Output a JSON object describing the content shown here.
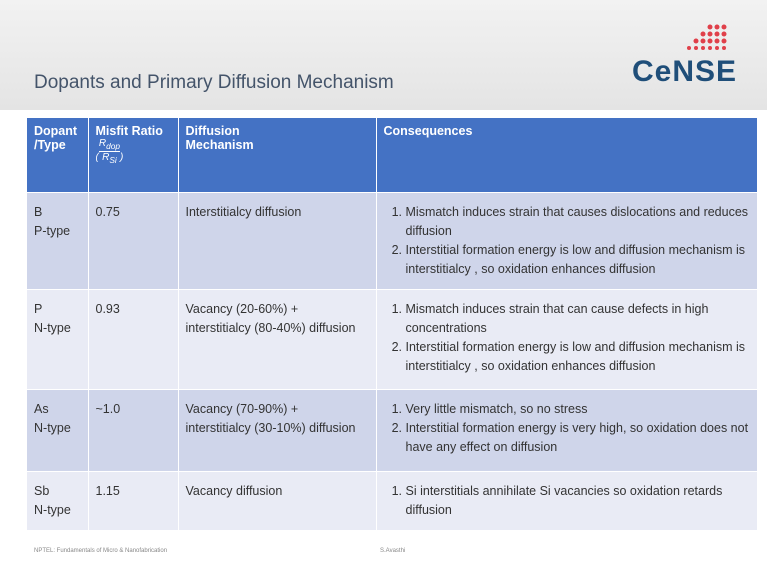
{
  "header": {
    "title": "Dopants and Primary Diffusion Mechanism",
    "logo": "CeNSE"
  },
  "table": {
    "columns": [
      {
        "lines": [
          "Dopant",
          "/Type"
        ]
      },
      {
        "text": "Misfit Ratio",
        "numerator": {
          "base": "R",
          "sub": "dop"
        },
        "denominator": {
          "base": "R",
          "sub": "Si"
        }
      },
      {
        "lines": [
          "Diffusion",
          "Mechanism"
        ]
      },
      {
        "lines": [
          "Consequences"
        ]
      }
    ],
    "rows": [
      {
        "dopant": [
          "B",
          "P-type"
        ],
        "ratio": "0.75",
        "mechanism": [
          "Interstitialcy diffusion"
        ],
        "consequences": [
          "Mismatch induces strain that causes dislocations and reduces diffusion",
          "Interstitial formation energy is low and diffusion mechanism is interstitialcy , so oxidation enhances diffusion"
        ]
      },
      {
        "dopant": [
          "P",
          "N-type"
        ],
        "ratio": "0.93",
        "mechanism": [
          "Vacancy (20-60%) +",
          "interstitialcy (80-40%) diffusion"
        ],
        "consequences": [
          "Mismatch induces strain that can cause defects in high concentrations",
          "Interstitial formation energy is low and diffusion mechanism is interstitialcy , so oxidation enhances diffusion"
        ]
      },
      {
        "dopant": [
          "As",
          "N-type"
        ],
        "ratio": "~1.0",
        "mechanism": [
          "Vacancy (70-90%) +",
          "interstitialcy (30-10%) diffusion"
        ],
        "consequences": [
          "Very little mismatch, so no stress",
          "Interstitial formation energy is very high, so oxidation does not have any effect on diffusion"
        ]
      },
      {
        "dopant": [
          "Sb",
          "N-type"
        ],
        "ratio": "1.15",
        "mechanism": [
          "Vacancy diffusion"
        ],
        "consequences": [
          "Si interstitials annihilate Si vacancies so oxidation retards diffusion"
        ]
      }
    ]
  },
  "footer": {
    "left": "NPTEL: Fundamentals of Micro & Nanofabrication",
    "center": "S.Avasthi"
  }
}
